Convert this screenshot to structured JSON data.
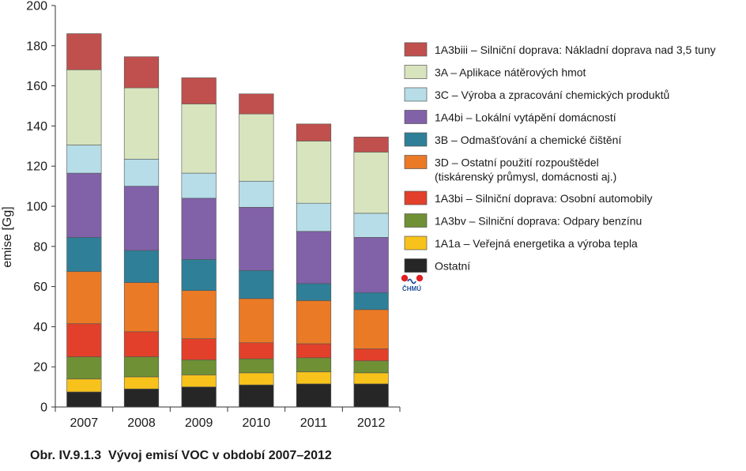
{
  "caption": "Obr. IV.9.1.3  Vývoj emisí VOC v období 2007–2012",
  "logo": {
    "text": "ČHMÚ"
  },
  "chart_data": {
    "type": "bar",
    "stacked": true,
    "categories": [
      "2007",
      "2008",
      "2009",
      "2010",
      "2011",
      "2012"
    ],
    "ylabel": "emise [Gg]",
    "xlabel": "",
    "ylim": [
      0,
      200
    ],
    "yticks": [
      0,
      20,
      40,
      60,
      80,
      100,
      120,
      140,
      160,
      180,
      200
    ],
    "grid": false,
    "legend_position": "right",
    "series": [
      {
        "name": "Ostatní",
        "color": "#262626",
        "values": [
          7.5,
          9.0,
          10.0,
          11.0,
          11.5,
          11.5
        ]
      },
      {
        "name": "1A1a – Veřejná energetika a výroba tepla",
        "color": "#f7c21b",
        "values": [
          6.5,
          6.0,
          6.0,
          6.0,
          6.0,
          5.5
        ]
      },
      {
        "name": "1A3bv – Silniční doprava: Odpary benzínu",
        "color": "#6f9034",
        "values": [
          11.0,
          10.0,
          7.5,
          7.0,
          7.0,
          6.0
        ]
      },
      {
        "name": "1A3bi – Silniční doprava: Osobní automobily",
        "color": "#e2402a",
        "values": [
          16.5,
          12.5,
          10.5,
          8.0,
          7.0,
          6.0
        ]
      },
      {
        "name": "3D – Ostatní použití rozpouštědel\n(tiskárenský průmysl, domácnosti aj.)",
        "color": "#ea7a25",
        "values": [
          26.0,
          24.5,
          24.0,
          22.0,
          21.5,
          19.5
        ]
      },
      {
        "name": "3B – Odmašťování a chemické čištění",
        "color": "#2f7f98",
        "values": [
          17.0,
          16.0,
          15.5,
          14.0,
          8.5,
          8.5
        ]
      },
      {
        "name": "1A4bi  – Lokální vytápění domácností",
        "color": "#8161a8",
        "values": [
          32.0,
          32.0,
          30.5,
          31.5,
          26.0,
          27.5
        ]
      },
      {
        "name": "3C – Výroba a zpracování chemických produktů",
        "color": "#b6dde8",
        "values": [
          14.0,
          13.5,
          12.5,
          13.0,
          14.0,
          12.0
        ]
      },
      {
        "name": "3A – Aplikace nátěrových hmot",
        "color": "#d7e4bd",
        "values": [
          37.5,
          35.5,
          34.5,
          33.5,
          31.0,
          30.5
        ]
      },
      {
        "name": "1A3biii – Silniční doprava: Nákladní doprava nad 3,5 tuny",
        "color": "#c0504d",
        "values": [
          18.0,
          15.5,
          13.0,
          10.0,
          8.5,
          7.5
        ]
      }
    ]
  }
}
